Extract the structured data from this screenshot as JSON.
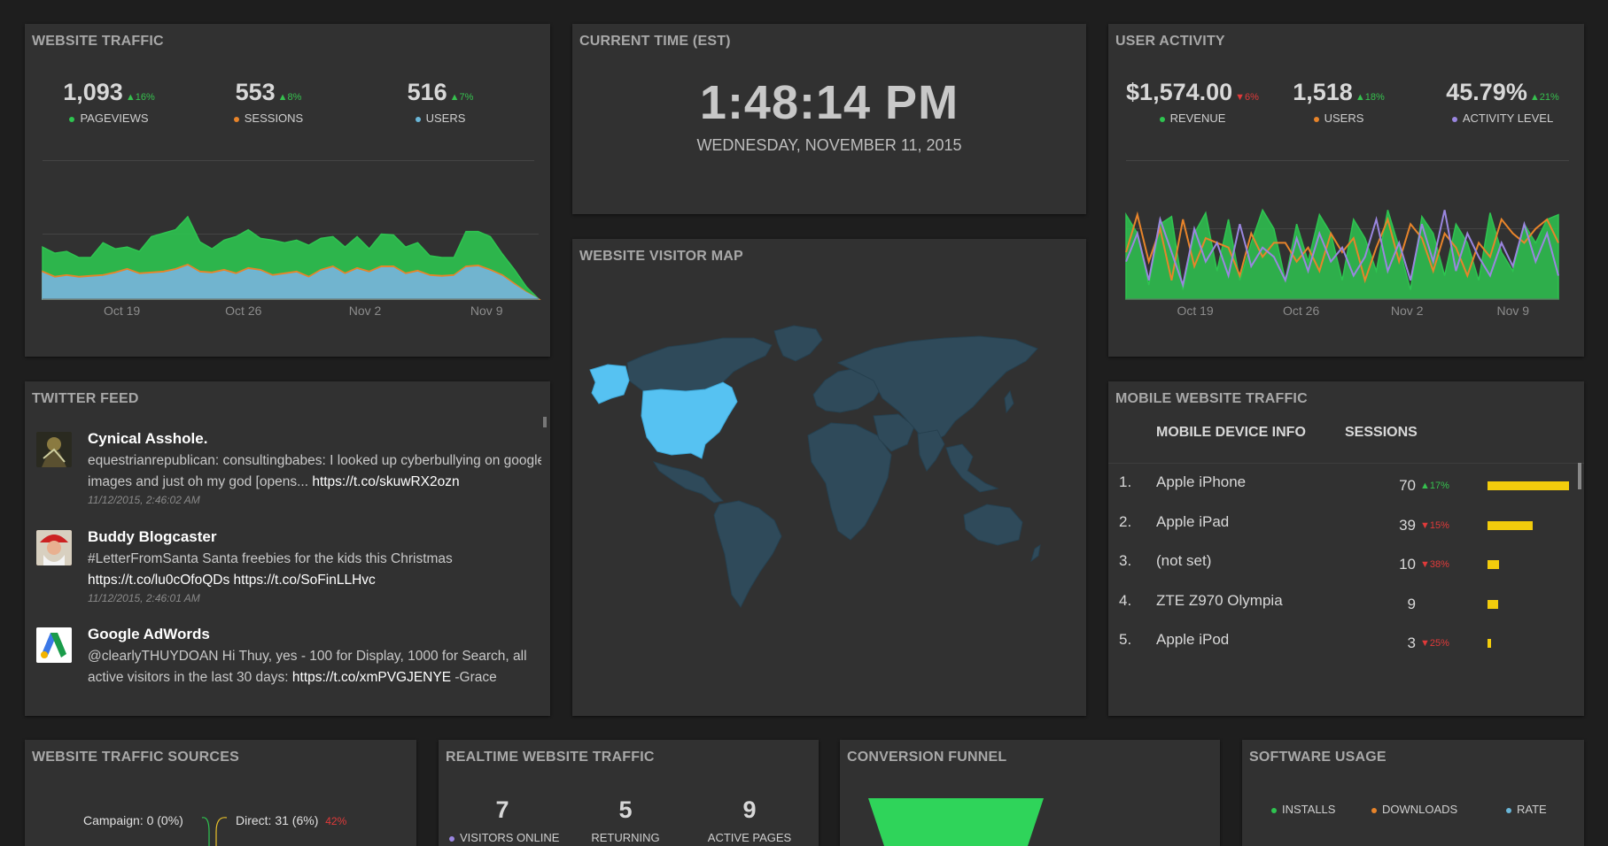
{
  "colors": {
    "panel": "#313131",
    "background": "#1e1e1e",
    "green": "#2ec450",
    "blue": "#6ab6d8",
    "orange": "#e8842a",
    "purple": "#9a86e0",
    "yellow": "#f2cc0c",
    "up": "#36c04e",
    "down": "#e03a3a",
    "map_highlight": "#56c2f2",
    "map_land": "#2f4a5a"
  },
  "website_traffic": {
    "title": "WEBSITE TRAFFIC",
    "stats": [
      {
        "value": "1,093",
        "change": "▲16%",
        "dir": "up",
        "label": "PAGEVIEWS",
        "color": "#2ec450"
      },
      {
        "value": "553",
        "change": "▲8%",
        "dir": "up",
        "label": "SESSIONS",
        "color": "#e8842a"
      },
      {
        "value": "516",
        "change": "▲7%",
        "dir": "up",
        "label": "USERS",
        "color": "#6ab6d8"
      }
    ]
  },
  "current_time": {
    "title": "CURRENT TIME (EST)",
    "time": "1:48:14 PM",
    "date": "WEDNESDAY, NOVEMBER 11, 2015"
  },
  "user_activity": {
    "title": "USER ACTIVITY",
    "stats": [
      {
        "value": "$1,574.00",
        "change": "▼6%",
        "dir": "down",
        "label": "REVENUE",
        "color": "#2ec450"
      },
      {
        "value": "1,518",
        "change": "▲18%",
        "dir": "up",
        "label": "USERS",
        "color": "#e8842a"
      },
      {
        "value": "45.79%",
        "change": "▲21%",
        "dir": "up",
        "label": "ACTIVITY LEVEL",
        "color": "#9a86e0"
      }
    ]
  },
  "twitter_feed": {
    "title": "TWITTER FEED",
    "tweets": [
      {
        "name": "Cynical Asshole.",
        "text": "equestrianrepublican: consultingbabes: I looked up cyberbullying on google images and just oh my god [opens... ",
        "link": "https://t.co/skuwRX2ozn",
        "date": "11/12/2015, 2:46:02 AM",
        "avatar": "cynical-avatar"
      },
      {
        "name": "Buddy Blogcaster",
        "text": "#LetterFromSanta Santa freebies for the kids this Christmas ",
        "link": "https://t.co/lu0cOfoQDs https://t.co/SoFinLLHvc",
        "date": "11/12/2015, 2:46:01 AM",
        "avatar": "santa-avatar"
      },
      {
        "name": "Google AdWords",
        "text": "@clearlyTHUYDOAN Hi Thuy, yes - 100 for Display, 1000 for Search, all active visitors in the last 30 days: ",
        "link": "https://t.co/xmPVGJENYE",
        "tail": " -Grace",
        "date": "",
        "avatar": "adwords-logo"
      }
    ]
  },
  "visitor_map": {
    "title": "WEBSITE VISITOR MAP",
    "highlighted": [
      "United States",
      "Alaska"
    ]
  },
  "mobile_traffic": {
    "title": "MOBILE WEBSITE TRAFFIC",
    "col_device": "MOBILE DEVICE INFO",
    "col_sessions": "SESSIONS",
    "rows": [
      {
        "rank": "1.",
        "device": "Apple iPhone",
        "sessions": "70",
        "change": "▲17%",
        "dir": "up",
        "share": 70
      },
      {
        "rank": "2.",
        "device": "Apple iPad",
        "sessions": "39",
        "change": "▼15%",
        "dir": "down",
        "share": 39
      },
      {
        "rank": "3.",
        "device": "(not set)",
        "sessions": "10",
        "change": "▼38%",
        "dir": "down",
        "share": 10
      },
      {
        "rank": "4.",
        "device": "ZTE Z970 Olympia",
        "sessions": "9",
        "change": "",
        "dir": "",
        "share": 9
      },
      {
        "rank": "5.",
        "device": "Apple iPod",
        "sessions": "3",
        "change": "▼25%",
        "dir": "down",
        "share": 3
      }
    ]
  },
  "traffic_sources": {
    "title": "WEBSITE TRAFFIC SOURCES",
    "label_campaign": "Campaign: 0 (0%)",
    "label_direct": "Direct: 31 (6%)",
    "direct_change": "42%"
  },
  "realtime": {
    "title": "REALTIME WEBSITE TRAFFIC",
    "items": [
      {
        "value": "7",
        "label": "VISITORS ONLINE",
        "color": "#9a86e0"
      },
      {
        "value": "5",
        "label": "RETURNING",
        "color": ""
      },
      {
        "value": "9",
        "label": "ACTIVE PAGES",
        "color": ""
      }
    ]
  },
  "conversion_funnel": {
    "title": "CONVERSION FUNNEL"
  },
  "software_usage": {
    "title": "SOFTWARE USAGE",
    "legend": [
      {
        "label": "INSTALLS",
        "color": "#2ec450"
      },
      {
        "label": "DOWNLOADS",
        "color": "#e8842a"
      },
      {
        "label": "RATE",
        "color": "#6ab6d8"
      }
    ]
  },
  "chart_data": [
    {
      "type": "area",
      "x_ticks": [
        "Oct 19",
        "Oct 26",
        "Nov 2",
        "Nov 9"
      ],
      "series": [
        {
          "name": "PAGEVIEWS",
          "color": "#2ec450",
          "values": [
            60,
            53,
            55,
            48,
            48,
            65,
            58,
            60,
            55,
            72,
            76,
            80,
            95,
            66,
            58,
            68,
            72,
            80,
            70,
            68,
            65,
            68,
            62,
            70,
            72,
            60,
            72,
            58,
            75,
            74,
            60,
            65,
            50,
            48,
            48,
            78,
            78,
            72,
            52,
            34,
            14,
            0
          ]
        },
        {
          "name": "SESSIONS",
          "color": "#e8842a",
          "values": [
            32,
            26,
            28,
            26,
            27,
            28,
            31,
            35,
            30,
            31,
            32,
            35,
            40,
            32,
            31,
            34,
            30,
            36,
            34,
            28,
            30,
            32,
            26,
            34,
            38,
            30,
            36,
            32,
            38,
            38,
            30,
            33,
            28,
            27,
            28,
            38,
            39,
            34,
            28,
            18,
            8,
            0
          ]
        },
        {
          "name": "USERS",
          "color": "#6ab6d8",
          "values": [
            30,
            24,
            26,
            24,
            25,
            26,
            29,
            33,
            28,
            29,
            30,
            33,
            38,
            30,
            29,
            32,
            28,
            34,
            32,
            26,
            28,
            30,
            24,
            32,
            36,
            28,
            34,
            30,
            36,
            36,
            28,
            31,
            26,
            25,
            26,
            36,
            37,
            32,
            26,
            16,
            7,
            0
          ]
        }
      ]
    },
    {
      "type": "line",
      "x_ticks": [
        "Oct 19",
        "Oct 26",
        "Nov 2",
        "Nov 9"
      ],
      "series": [
        {
          "name": "REVENUE",
          "color": "#2ec450",
          "values": [
            90,
            70,
            15,
            80,
            88,
            10,
            70,
            92,
            30,
            85,
            20,
            60,
            95,
            75,
            20,
            80,
            40,
            90,
            70,
            20,
            85,
            65,
            30,
            95,
            55,
            10,
            88,
            70,
            25,
            80,
            60,
            20,
            92,
            50,
            30,
            80,
            60,
            85,
            90
          ]
        },
        {
          "name": "USERS",
          "color": "#e8842a",
          "values": [
            50,
            90,
            40,
            75,
            20,
            85,
            35,
            65,
            60,
            55,
            25,
            70,
            45,
            60,
            60,
            40,
            55,
            30,
            70,
            50,
            65,
            20,
            55,
            85,
            40,
            80,
            65,
            30,
            70,
            55,
            25,
            60,
            45,
            85,
            70,
            60,
            75,
            85,
            60
          ]
        },
        {
          "name": "ACTIVITY LEVEL",
          "color": "#9a86e0",
          "values": [
            40,
            70,
            20,
            85,
            50,
            15,
            75,
            40,
            60,
            25,
            80,
            35,
            55,
            45,
            20,
            65,
            30,
            70,
            40,
            55,
            25,
            45,
            85,
            30,
            60,
            20,
            80,
            40,
            95,
            30,
            70,
            45,
            25,
            60,
            35,
            80,
            40,
            70,
            25
          ]
        }
      ]
    }
  ]
}
